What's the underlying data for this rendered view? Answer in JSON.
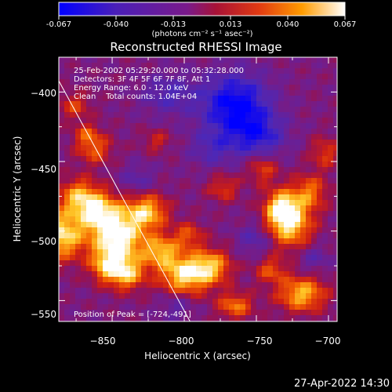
{
  "colorbar": {
    "ticks": [
      "-0.067",
      "-0.040",
      "-0.013",
      "0.013",
      "0.040",
      "0.067"
    ],
    "units_label": "(photons cm⁻² s⁻¹ asec⁻²)"
  },
  "chart_data": {
    "type": "heatmap",
    "title": "Reconstructed RHESSI Image",
    "xlabel": "Heliocentric X (arcsec)",
    "ylabel": "Heliocentric Y (arcsec)",
    "xlim": [
      -887,
      -694
    ],
    "ylim": [
      -565,
      -375
    ],
    "x_ticks": [
      -850,
      -800,
      -750,
      -700
    ],
    "y_ticks": [
      -400,
      -450,
      -500,
      -550
    ],
    "x_tick_labels": [
      "−850",
      "−800",
      "−750",
      "−700"
    ],
    "y_tick_labels": [
      "−400",
      "−450",
      "−500",
      "−550"
    ],
    "colorbar_range": [
      -0.067,
      0.067
    ],
    "colormap": [
      "#0000ff",
      "#6a2aa0",
      "#a0134d",
      "#e8301a",
      "#ff8a00",
      "#ffd23a",
      "#ffffff"
    ],
    "limb_line": [
      [
        -887,
        -392
      ],
      [
        -796,
        -565
      ]
    ],
    "info_lines": [
      "25-Feb-2002 05:29:20.000 to 05:32:28.000",
      "Detectors: 3F 4F 5F 6F 7F 8F, Att 1",
      "Energy Range: 6.0 - 12.0 keV",
      "Clean    Total counts: 1.04E+04"
    ],
    "peak_label": "Position of Peak = [-724,-491]",
    "peak": [
      -724,
      -491
    ]
  },
  "footer": {
    "timestamp": "27-Apr-2022 14:30"
  }
}
